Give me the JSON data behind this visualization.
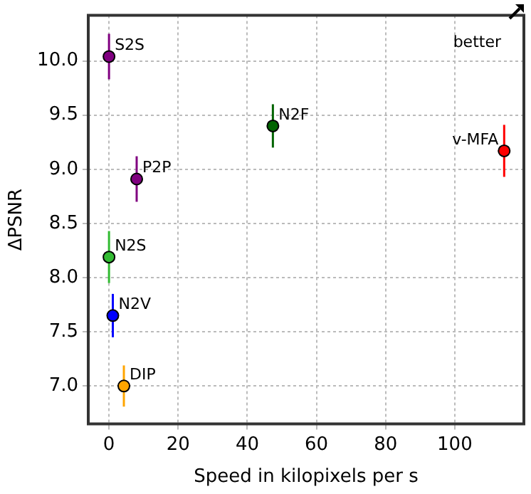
{
  "chart_data": {
    "type": "scatter",
    "xlabel": "Speed in kilopixels per s",
    "ylabel": "ΔPSNR",
    "xlim": [
      -6,
      120
    ],
    "xticks": [
      0,
      20,
      40,
      60,
      80,
      100
    ],
    "ylim": [
      6.65,
      10.42
    ],
    "yticks": [
      {
        "value": 7,
        "label": "7.0"
      },
      {
        "value": 7.5,
        "label": "7.5"
      },
      {
        "value": 8,
        "label": "8.0"
      },
      {
        "value": 8.5,
        "label": "8.5"
      },
      {
        "value": 9,
        "label": "9.0"
      },
      {
        "value": 9.5,
        "label": "9.5"
      },
      {
        "value": 10,
        "label": "10.0"
      }
    ],
    "grid": true,
    "legend": false,
    "marker": "circle",
    "annotations": [
      "better"
    ],
    "series": [
      {
        "name": "S2S",
        "color": "#800080",
        "x": [
          0
        ],
        "values": [
          10.04
        ],
        "errors": [
          0.21
        ]
      },
      {
        "name": "P2P",
        "color": "#800080",
        "x": [
          8
        ],
        "values": [
          8.91
        ],
        "errors": [
          0.21
        ]
      },
      {
        "name": "N2S",
        "color": "#33bb33",
        "x": [
          0
        ],
        "values": [
          8.19
        ],
        "errors": [
          0.24
        ]
      },
      {
        "name": "N2V",
        "color": "#0000ff",
        "x": [
          1.1
        ],
        "values": [
          7.65
        ],
        "errors": [
          0.2
        ]
      },
      {
        "name": "DIP",
        "color": "#ffa500",
        "x": [
          4.3
        ],
        "values": [
          7.0
        ],
        "errors": [
          0.19
        ]
      },
      {
        "name": "N2F",
        "color": "#006400",
        "x": [
          47.4
        ],
        "values": [
          9.4
        ],
        "errors": [
          0.2
        ]
      },
      {
        "name": "v-MFA",
        "color": "#ff0000",
        "x": [
          114.3
        ],
        "values": [
          9.17
        ],
        "errors": [
          0.24
        ],
        "xerrors": [
          1.8
        ]
      }
    ]
  }
}
